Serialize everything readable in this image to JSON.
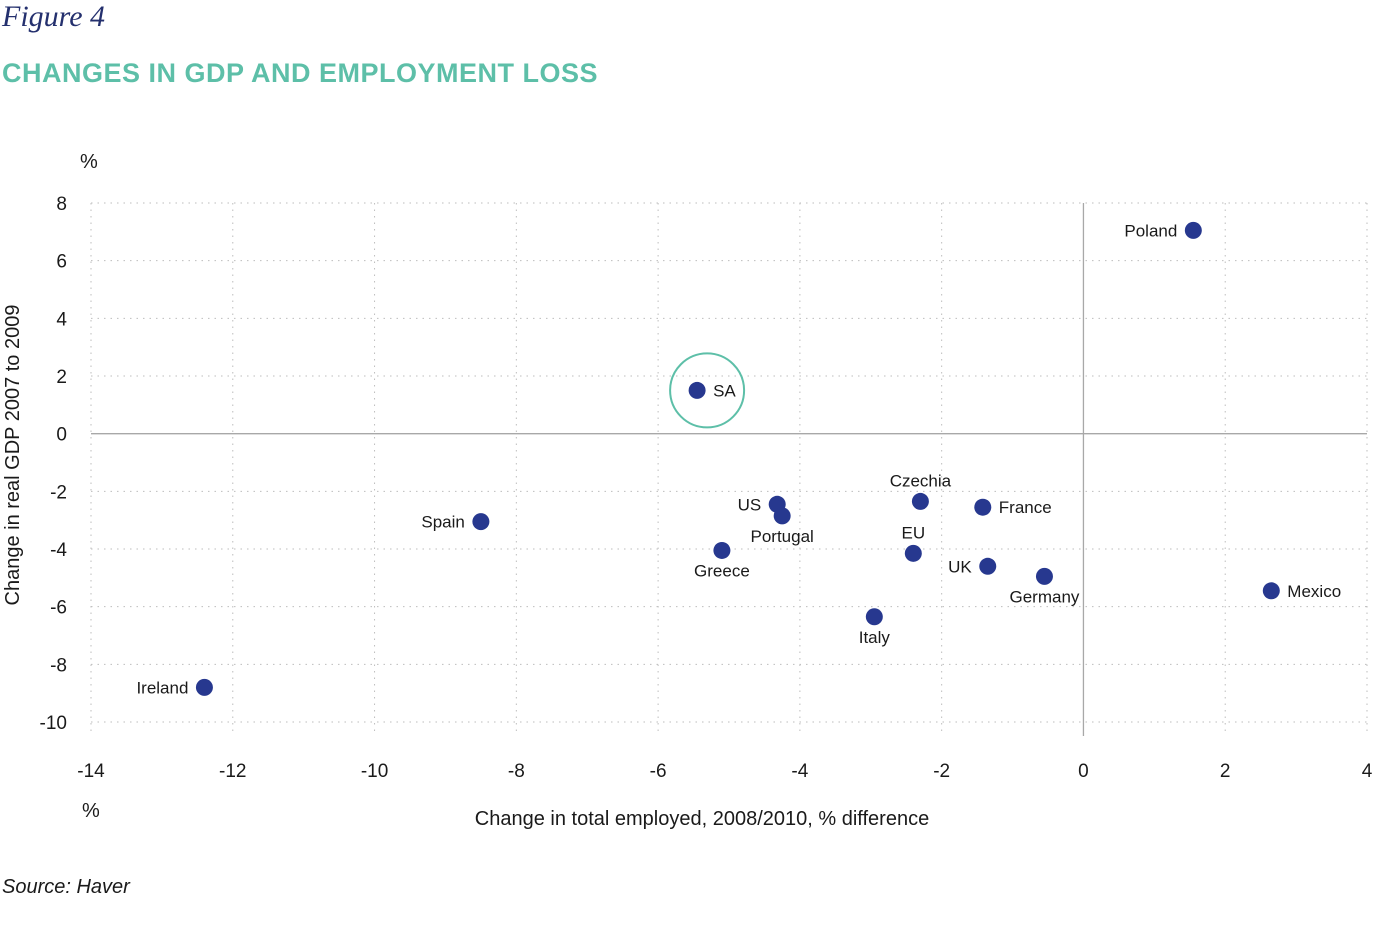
{
  "figure_label": "Figure 4",
  "title": "CHANGES IN GDP AND EMPLOYMENT LOSS",
  "source": "Source: Haver",
  "colors": {
    "point": "#27388f",
    "highlight": "#5dbfa8",
    "title": "#5dbfa8",
    "figure_label": "#24306e",
    "grid": "#bdbdbd",
    "axis": "#a8a8a8"
  },
  "chart_data": {
    "type": "scatter",
    "title": "CHANGES IN GDP AND EMPLOYMENT LOSS",
    "xlabel": "Change in total employed, 2008/2010, % difference",
    "ylabel": "Change in real GDP 2007 to 2009",
    "x_unit": "%",
    "y_unit": "%",
    "xlim": [
      -14,
      4
    ],
    "ylim": [
      -10,
      8
    ],
    "xticks": [
      -14,
      -12,
      -10,
      -8,
      -6,
      -4,
      -2,
      0,
      2,
      4
    ],
    "yticks": [
      8,
      6,
      4,
      2,
      0,
      -2,
      -4,
      -6,
      -8,
      -10
    ],
    "grid": "dotted",
    "highlight": "SA",
    "points": [
      {
        "label": "Poland",
        "x": 1.55,
        "y": 7.05,
        "label_pos": "left"
      },
      {
        "label": "SA",
        "x": -5.45,
        "y": 1.5,
        "label_pos": "right"
      },
      {
        "label": "Spain",
        "x": -8.5,
        "y": -3.05,
        "label_pos": "left"
      },
      {
        "label": "US",
        "x": -4.32,
        "y": -2.45,
        "label_pos": "left"
      },
      {
        "label": "Portugal",
        "x": -4.25,
        "y": -2.85,
        "label_pos": "below"
      },
      {
        "label": "Greece",
        "x": -5.1,
        "y": -4.05,
        "label_pos": "below"
      },
      {
        "label": "Czechia",
        "x": -2.3,
        "y": -2.35,
        "label_pos": "above"
      },
      {
        "label": "France",
        "x": -1.42,
        "y": -2.55,
        "label_pos": "right"
      },
      {
        "label": "EU",
        "x": -2.4,
        "y": -4.15,
        "label_pos": "above"
      },
      {
        "label": "UK",
        "x": -1.35,
        "y": -4.6,
        "label_pos": "left"
      },
      {
        "label": "Germany",
        "x": -0.55,
        "y": -4.95,
        "label_pos": "below"
      },
      {
        "label": "Italy",
        "x": -2.95,
        "y": -6.35,
        "label_pos": "below"
      },
      {
        "label": "Mexico",
        "x": 2.65,
        "y": -5.45,
        "label_pos": "right"
      },
      {
        "label": "Ireland",
        "x": -12.4,
        "y": -8.8,
        "label_pos": "left"
      }
    ]
  }
}
